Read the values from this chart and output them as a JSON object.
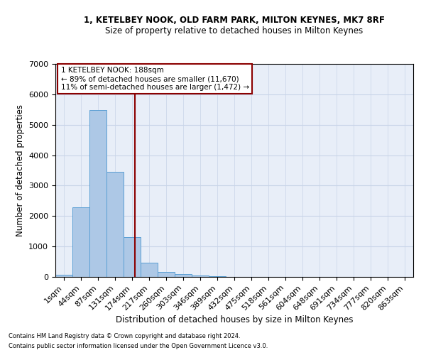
{
  "title1": "1, KETELBEY NOOK, OLD FARM PARK, MILTON KEYNES, MK7 8RF",
  "title2": "Size of property relative to detached houses in Milton Keynes",
  "xlabel": "Distribution of detached houses by size in Milton Keynes",
  "ylabel": "Number of detached properties",
  "footnote1": "Contains HM Land Registry data © Crown copyright and database right 2024.",
  "footnote2": "Contains public sector information licensed under the Open Government Licence v3.0.",
  "bar_labels": [
    "1sqm",
    "44sqm",
    "87sqm",
    "131sqm",
    "174sqm",
    "217sqm",
    "260sqm",
    "303sqm",
    "346sqm",
    "389sqm",
    "432sqm",
    "475sqm",
    "518sqm",
    "561sqm",
    "604sqm",
    "648sqm",
    "691sqm",
    "734sqm",
    "777sqm",
    "820sqm",
    "863sqm"
  ],
  "bar_values": [
    80,
    2280,
    5480,
    3450,
    1310,
    470,
    160,
    90,
    50,
    30,
    0,
    0,
    0,
    0,
    0,
    0,
    0,
    0,
    0,
    0,
    0
  ],
  "bar_color": "#adc8e6",
  "bar_edge_color": "#5a9fd4",
  "grid_color": "#c8d4e8",
  "background_color": "#e8eef8",
  "vline_x_index": 4.15,
  "vline_color": "#8b0000",
  "annotation_text": "1 KETELBEY NOOK: 188sqm\n← 89% of detached houses are smaller (11,670)\n11% of semi-detached houses are larger (1,472) →",
  "annotation_box_color": "#8b0000",
  "ylim": [
    0,
    7000
  ],
  "yticks": [
    0,
    1000,
    2000,
    3000,
    4000,
    5000,
    6000,
    7000
  ]
}
